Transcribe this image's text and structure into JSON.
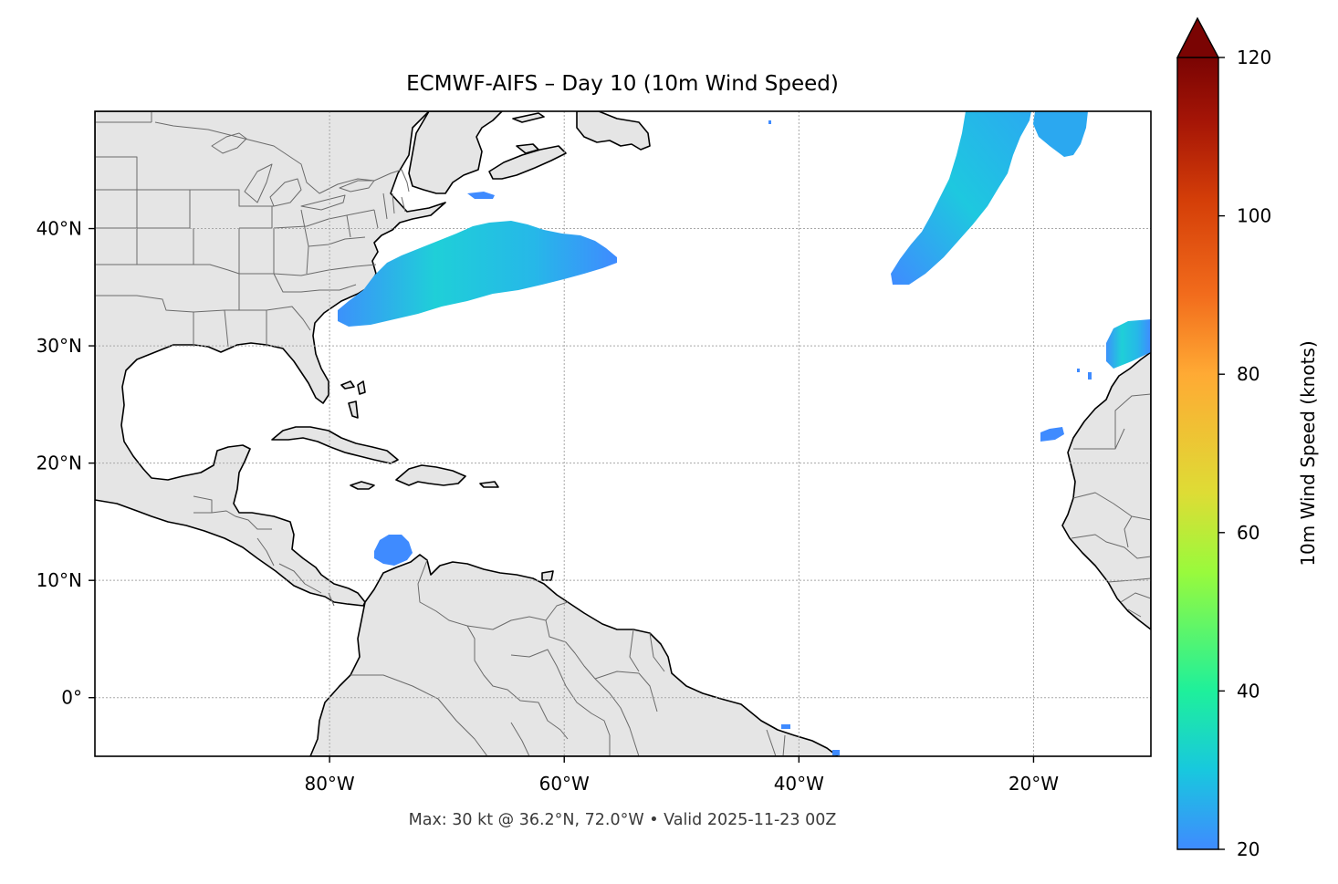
{
  "title": "ECMWF-AIFS – Day 10 (10m Wind Speed)",
  "footer": "Max: 30 kt @ 36.2°N, 72.0°W • Valid 2025-11-23 00Z",
  "map": {
    "extent": {
      "lon_min": -100,
      "lon_max": -10,
      "lat_min": -5,
      "lat_max": 50
    },
    "gridlines": true,
    "lon_ticks": [
      {
        "lon": -80,
        "label": "80°W"
      },
      {
        "lon": -60,
        "label": "60°W"
      },
      {
        "lon": -40,
        "label": "40°W"
      },
      {
        "lon": -20,
        "label": "20°W"
      }
    ],
    "lat_ticks": [
      {
        "lat": 40,
        "label": "40°N"
      },
      {
        "lat": 30,
        "label": "30°N"
      },
      {
        "lat": 20,
        "label": "20°N"
      },
      {
        "lat": 10,
        "label": "10°N"
      },
      {
        "lat": 0,
        "label": "0°"
      }
    ],
    "land_color": "#e5e5e5",
    "coast_color": "#000000"
  },
  "colorbar": {
    "label": "10m Wind Speed (knots)",
    "min": 20,
    "max": 120,
    "extend": "max",
    "ticks": [
      {
        "value": 20,
        "label": "20"
      },
      {
        "value": 40,
        "label": "40"
      },
      {
        "value": 60,
        "label": "60"
      },
      {
        "value": 80,
        "label": "80"
      },
      {
        "value": 100,
        "label": "100"
      },
      {
        "value": 120,
        "label": "120"
      }
    ],
    "colors": [
      "#3f8bff",
      "#18c8de",
      "#1ef09b",
      "#99fa3c",
      "#dedc35",
      "#ffaa34",
      "#f26c1c",
      "#d43e08",
      "#a51506",
      "#7a0403"
    ]
  },
  "wind_areas": [
    {
      "name": "Western Atlantic jet",
      "peak_kt": 30
    },
    {
      "name": "Northeast Atlantic band",
      "peak_kt": 28
    },
    {
      "name": "Canary Islands area",
      "peak_kt": 27
    },
    {
      "name": "Southern Caribbean",
      "peak_kt": 22
    }
  ]
}
